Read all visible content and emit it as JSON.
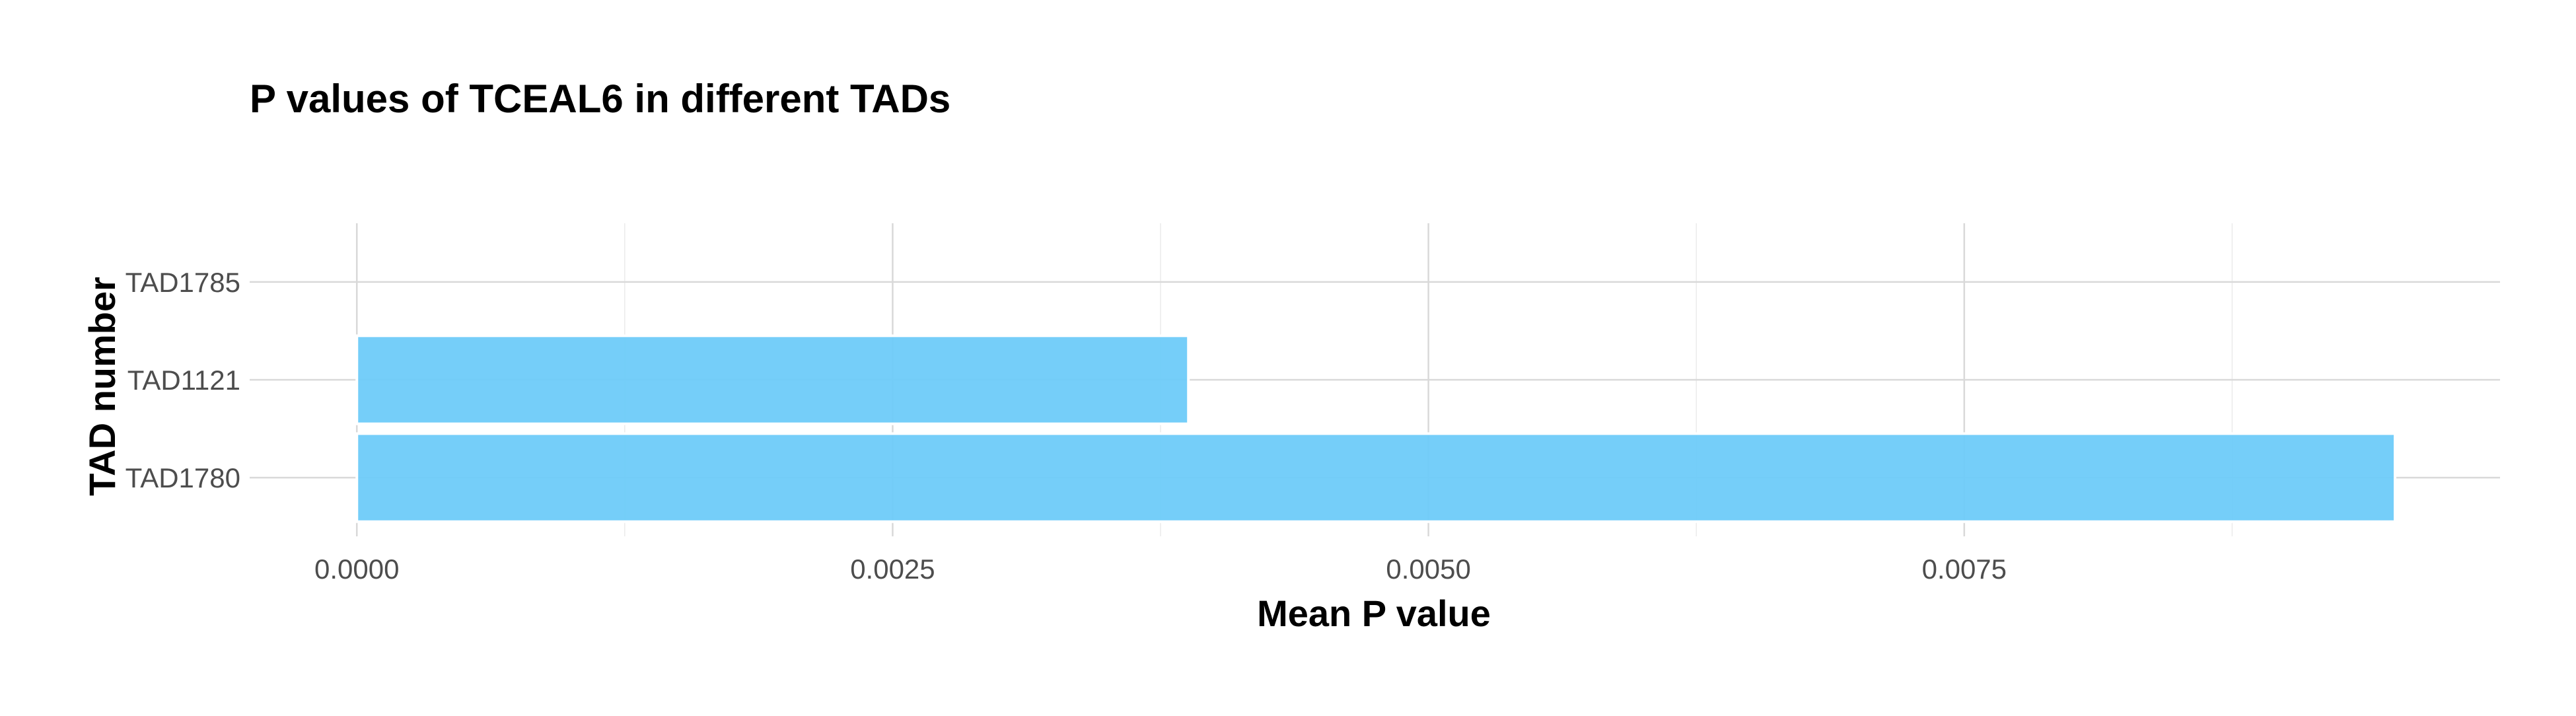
{
  "chart_data": {
    "type": "bar",
    "orientation": "horizontal",
    "title": "P values of TCEAL6 in different TADs",
    "xlabel": "Mean P value",
    "ylabel": "TAD number",
    "categories": [
      "TAD1785",
      "TAD1121",
      "TAD1780"
    ],
    "values": [
      0,
      0.00388,
      0.00951
    ],
    "xlim": [
      -0.0005,
      0.01
    ],
    "x_ticks": [
      0,
      0.0025,
      0.005,
      0.0075
    ],
    "x_tick_labels": [
      "0.0000",
      "0.0025",
      "0.0050",
      "0.0075"
    ],
    "bar_color": "#6ECBF9",
    "grid": true,
    "legend": "none"
  }
}
